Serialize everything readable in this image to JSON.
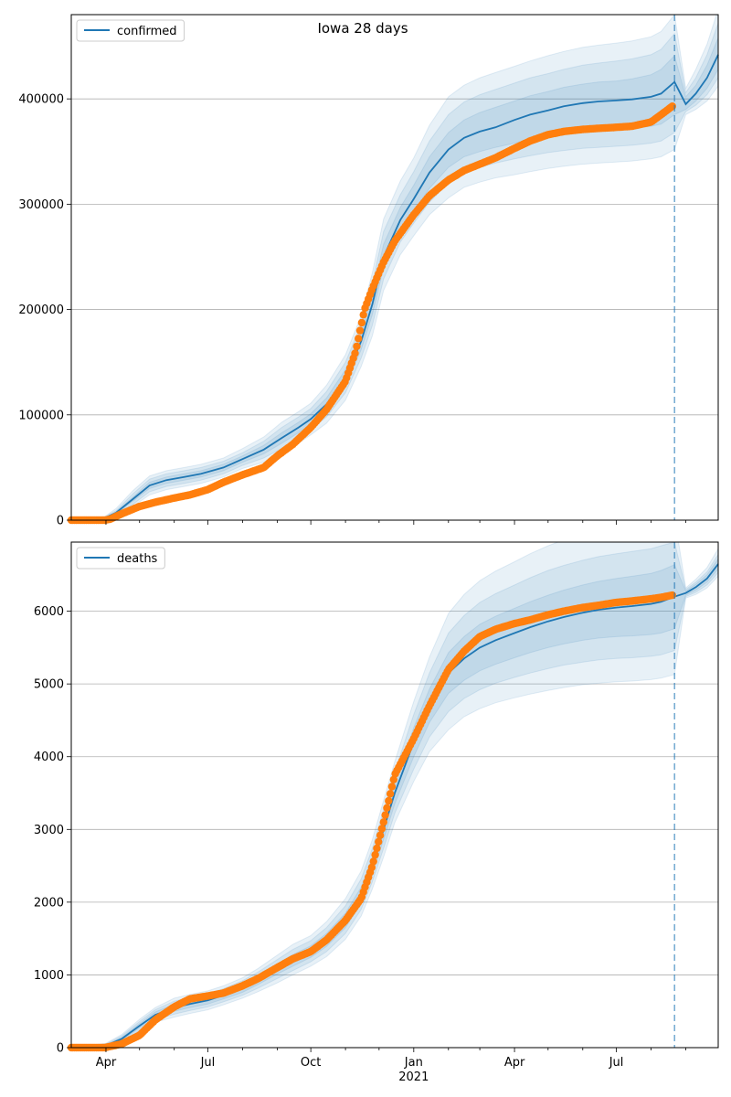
{
  "chart_data": [
    {
      "type": "line",
      "title": "Iowa 28 days",
      "legend": {
        "label": "confirmed",
        "placement": "top-left"
      },
      "ylim": [
        0,
        480000
      ],
      "yticks": [
        0,
        100000,
        200000,
        300000,
        400000
      ],
      "ytick_labels": [
        "0",
        "100000",
        "200000",
        "300000",
        "400000"
      ],
      "grid": "y",
      "x_range": [
        "2020-03-01",
        "2021-09-30"
      ],
      "forecast_start": "2021-08-22",
      "model": {
        "name": "confirmed",
        "color": "#1f77b4",
        "x": [
          "2020-03-01",
          "2020-03-31",
          "2020-04-10",
          "2020-04-25",
          "2020-05-10",
          "2020-05-25",
          "2020-06-10",
          "2020-06-25",
          "2020-07-15",
          "2020-08-01",
          "2020-08-20",
          "2020-09-05",
          "2020-09-20",
          "2020-10-01",
          "2020-10-15",
          "2020-11-01",
          "2020-11-15",
          "2020-11-25",
          "2020-12-05",
          "2020-12-20",
          "2021-01-01",
          "2021-01-15",
          "2021-02-01",
          "2021-02-15",
          "2021-03-01",
          "2021-03-15",
          "2021-04-01",
          "2021-04-15",
          "2021-05-01",
          "2021-05-15",
          "2021-06-01",
          "2021-06-15",
          "2021-07-01",
          "2021-07-15",
          "2021-08-01",
          "2021-08-10",
          "2021-08-22",
          "2021-09-01",
          "2021-09-10",
          "2021-09-20",
          "2021-09-30"
        ],
        "y": [
          0,
          2000,
          7000,
          20000,
          33000,
          38000,
          41000,
          44000,
          50000,
          58000,
          67000,
          78000,
          88000,
          96000,
          110000,
          135000,
          170000,
          205000,
          250000,
          285000,
          305000,
          330000,
          352000,
          363000,
          369000,
          373000,
          380000,
          385000,
          389000,
          393000,
          396000,
          397500,
          398500,
          399500,
          402000,
          405000,
          416000,
          395000,
          405000,
          420000,
          442000
        ],
        "band50": {
          "lower": [
            0,
            1500,
            6000,
            18000,
            30000,
            35000,
            38000,
            41000,
            47000,
            55000,
            63000,
            73000,
            83000,
            91000,
            104000,
            128000,
            162000,
            195000,
            240000,
            275000,
            293000,
            315000,
            335000,
            345000,
            350000,
            354000,
            358000,
            362000,
            365000,
            367000,
            369000,
            370000,
            371000,
            372000,
            374000,
            376000,
            385000,
            390000,
            398000,
            410000,
            428000
          ],
          "upper": [
            0,
            2500,
            8000,
            22000,
            36000,
            41000,
            44000,
            47000,
            53000,
            61000,
            71000,
            83000,
            93000,
            101000,
            116000,
            143000,
            178000,
            215000,
            262000,
            297000,
            318000,
            345000,
            368000,
            380000,
            387000,
            392000,
            398000,
            403000,
            407000,
            411000,
            414000,
            416000,
            417000,
            419000,
            423000,
            428000,
            441000,
            402000,
            413000,
            432000,
            458000
          ]
        },
        "band80": {
          "lower": [
            0,
            1000,
            5000,
            15000,
            27000,
            32000,
            35000,
            38000,
            44000,
            52000,
            59000,
            68000,
            78000,
            86000,
            98000,
            121000,
            154000,
            185000,
            229000,
            264000,
            282000,
            302000,
            320000,
            330000,
            335000,
            339000,
            343000,
            346000,
            349000,
            351000,
            353000,
            354000,
            355000,
            356000,
            358000,
            360000,
            368000,
            388000,
            394000,
            404000,
            420000
          ],
          "upper": [
            0,
            3000,
            9000,
            25000,
            39000,
            44000,
            47000,
            50000,
            56000,
            64000,
            75000,
            88000,
            98000,
            106000,
            122000,
            150000,
            186000,
            225000,
            274000,
            309000,
            331000,
            360000,
            385000,
            397000,
            404000,
            409000,
            415000,
            420000,
            424000,
            428000,
            432000,
            434000,
            436000,
            438000,
            442000,
            447000,
            462000,
            406000,
            420000,
            442000,
            472000
          ]
        },
        "band95": {
          "lower": [
            0,
            800,
            4000,
            13000,
            24000,
            29000,
            32000,
            35000,
            41000,
            49000,
            55000,
            63000,
            73000,
            81000,
            92000,
            114000,
            146000,
            175000,
            218000,
            252000,
            270000,
            290000,
            306000,
            316000,
            321000,
            325000,
            328000,
            331000,
            334000,
            336000,
            338000,
            339000,
            340000,
            341000,
            343000,
            345000,
            352000,
            385000,
            390000,
            398000,
            412000
          ],
          "upper": [
            0,
            3500,
            11000,
            28000,
            42000,
            47000,
            50000,
            53000,
            59000,
            68000,
            79000,
            93000,
            103000,
            111000,
            128000,
            157000,
            194000,
            235000,
            286000,
            322000,
            344000,
            375000,
            402000,
            413000,
            420000,
            425000,
            431000,
            436000,
            441000,
            445000,
            449000,
            451000,
            453000,
            455000,
            459000,
            464000,
            480000,
            410000,
            428000,
            452000,
            485000
          ]
        }
      },
      "observed": {
        "name": "observed",
        "color": "#ff7f0e",
        "x": [
          "2020-03-01",
          "2020-03-31",
          "2020-04-05",
          "2020-04-15",
          "2020-05-01",
          "2020-05-15",
          "2020-06-01",
          "2020-06-15",
          "2020-07-01",
          "2020-07-15",
          "2020-08-01",
          "2020-08-20",
          "2020-09-01",
          "2020-09-15",
          "2020-10-01",
          "2020-10-15",
          "2020-11-01",
          "2020-11-10",
          "2020-11-18",
          "2020-11-25",
          "2020-12-05",
          "2020-12-15",
          "2021-01-01",
          "2021-01-15",
          "2021-02-01",
          "2021-02-15",
          "2021-03-01",
          "2021-03-15",
          "2021-04-01",
          "2021-04-15",
          "2021-05-01",
          "2021-05-15",
          "2021-06-01",
          "2021-06-15",
          "2021-07-01",
          "2021-07-15",
          "2021-08-01",
          "2021-08-10",
          "2021-08-20"
        ],
        "y": [
          0,
          0,
          1000,
          6000,
          13000,
          17000,
          21000,
          24000,
          29000,
          36000,
          43000,
          50000,
          61000,
          72000,
          88000,
          105000,
          132000,
          160000,
          200000,
          220000,
          245000,
          265000,
          290000,
          308000,
          323000,
          332000,
          338000,
          344000,
          353000,
          360000,
          366000,
          369000,
          371000,
          372000,
          373000,
          374000,
          378000,
          385000,
          393000
        ]
      }
    },
    {
      "type": "line",
      "title": "",
      "legend": {
        "label": "deaths",
        "placement": "top-left"
      },
      "ylim": [
        0,
        6950
      ],
      "yticks": [
        0,
        1000,
        2000,
        3000,
        4000,
        5000,
        6000
      ],
      "ytick_labels": [
        "0",
        "1000",
        "2000",
        "3000",
        "4000",
        "5000",
        "6000"
      ],
      "grid": "y",
      "x_range": [
        "2020-03-01",
        "2021-09-30"
      ],
      "forecast_start": "2021-08-22",
      "xticks": [
        "2020-04-01",
        "2020-07-01",
        "2020-10-01",
        "2021-01-01",
        "2021-04-01",
        "2021-07-01"
      ],
      "xtick_labels": [
        "Apr",
        "Jul",
        "Oct",
        "Jan",
        "Apr",
        "Jul"
      ],
      "xtick_sublabels": [
        "",
        "",
        "",
        "2021",
        "",
        ""
      ],
      "model": {
        "name": "deaths",
        "color": "#1f77b4",
        "x": [
          "2020-03-01",
          "2020-04-01",
          "2020-04-15",
          "2020-05-01",
          "2020-05-15",
          "2020-06-01",
          "2020-06-15",
          "2020-07-01",
          "2020-07-15",
          "2020-08-01",
          "2020-08-15",
          "2020-09-01",
          "2020-09-15",
          "2020-10-01",
          "2020-10-15",
          "2020-11-01",
          "2020-11-15",
          "2020-11-25",
          "2020-12-05",
          "2020-12-15",
          "2021-01-01",
          "2021-01-15",
          "2021-02-01",
          "2021-02-15",
          "2021-03-01",
          "2021-03-15",
          "2021-04-01",
          "2021-04-15",
          "2021-05-01",
          "2021-05-15",
          "2021-06-01",
          "2021-06-15",
          "2021-07-01",
          "2021-07-15",
          "2021-08-01",
          "2021-08-10",
          "2021-08-22",
          "2021-09-01",
          "2021-09-10",
          "2021-09-20",
          "2021-09-30"
        ],
        "y": [
          0,
          30,
          120,
          300,
          450,
          550,
          600,
          650,
          720,
          820,
          930,
          1080,
          1200,
          1320,
          1480,
          1750,
          2100,
          2500,
          3000,
          3500,
          4200,
          4700,
          5150,
          5350,
          5500,
          5600,
          5700,
          5780,
          5860,
          5920,
          5980,
          6020,
          6050,
          6070,
          6100,
          6130,
          6200,
          6250,
          6330,
          6450,
          6650
        ],
        "band50": {
          "lower": [
            0,
            20,
            100,
            270,
            410,
            500,
            550,
            600,
            670,
            760,
            870,
            1010,
            1120,
            1240,
            1390,
            1650,
            1990,
            2380,
            2860,
            3350,
            4000,
            4470,
            4870,
            5050,
            5180,
            5270,
            5360,
            5430,
            5500,
            5550,
            5600,
            5630,
            5650,
            5660,
            5680,
            5700,
            5760,
            6220,
            6290,
            6400,
            6580
          ],
          "upper": [
            0,
            40,
            140,
            330,
            490,
            600,
            650,
            700,
            770,
            880,
            990,
            1150,
            1280,
            1400,
            1570,
            1850,
            2210,
            2620,
            3140,
            3650,
            4400,
            4930,
            5430,
            5650,
            5820,
            5930,
            6040,
            6130,
            6220,
            6290,
            6360,
            6410,
            6450,
            6480,
            6520,
            6560,
            6640,
            6280,
            6370,
            6500,
            6720
          ]
        },
        "band80": {
          "lower": [
            0,
            15,
            80,
            240,
            380,
            460,
            510,
            560,
            630,
            720,
            820,
            950,
            1060,
            1180,
            1320,
            1570,
            1900,
            2280,
            2740,
            3220,
            3830,
            4270,
            4620,
            4800,
            4920,
            5010,
            5090,
            5150,
            5210,
            5260,
            5300,
            5330,
            5350,
            5360,
            5380,
            5400,
            5460,
            6200,
            6260,
            6360,
            6530
          ],
          "upper": [
            0,
            50,
            160,
            360,
            520,
            640,
            690,
            740,
            810,
            920,
            1040,
            1210,
            1350,
            1470,
            1650,
            1950,
            2320,
            2740,
            3270,
            3790,
            4580,
            5150,
            5700,
            5940,
            6120,
            6240,
            6360,
            6460,
            6560,
            6630,
            6700,
            6750,
            6790,
            6820,
            6860,
            6900,
            6950,
            6300,
            6400,
            6540,
            6780
          ]
        },
        "band95": {
          "lower": [
            0,
            10,
            60,
            210,
            350,
            420,
            470,
            520,
            590,
            680,
            770,
            890,
            1000,
            1120,
            1250,
            1490,
            1810,
            2180,
            2620,
            3090,
            3660,
            4070,
            4370,
            4550,
            4660,
            4740,
            4810,
            4860,
            4910,
            4950,
            4990,
            5010,
            5030,
            5040,
            5060,
            5080,
            5130,
            6180,
            6230,
            6320,
            6480
          ],
          "upper": [
            0,
            60,
            180,
            390,
            550,
            680,
            730,
            780,
            850,
            960,
            1090,
            1270,
            1420,
            1540,
            1730,
            2050,
            2430,
            2860,
            3400,
            3930,
            4760,
            5370,
            5970,
            6230,
            6420,
            6550,
            6680,
            6790,
            6900,
            6980,
            7050,
            7100,
            7140,
            7170,
            7210,
            7250,
            7300,
            6320,
            6440,
            6600,
            6860
          ]
        }
      },
      "observed": {
        "name": "observed",
        "color": "#ff7f0e",
        "x": [
          "2020-03-01",
          "2020-03-31",
          "2020-04-15",
          "2020-05-01",
          "2020-05-15",
          "2020-06-01",
          "2020-06-15",
          "2020-07-01",
          "2020-07-15",
          "2020-08-01",
          "2020-08-15",
          "2020-09-01",
          "2020-09-15",
          "2020-10-01",
          "2020-10-15",
          "2020-11-01",
          "2020-11-15",
          "2020-11-25",
          "2020-12-05",
          "2020-12-15",
          "2021-01-01",
          "2021-01-15",
          "2021-02-01",
          "2021-02-15",
          "2021-03-01",
          "2021-03-15",
          "2021-04-01",
          "2021-04-15",
          "2021-05-01",
          "2021-05-15",
          "2021-06-01",
          "2021-06-15",
          "2021-07-01",
          "2021-07-15",
          "2021-08-01",
          "2021-08-10",
          "2021-08-20"
        ],
        "y": [
          0,
          0,
          50,
          170,
          380,
          560,
          670,
          710,
          750,
          850,
          950,
          1100,
          1220,
          1320,
          1480,
          1750,
          2050,
          2500,
          3100,
          3750,
          4250,
          4700,
          5200,
          5450,
          5650,
          5750,
          5830,
          5880,
          5950,
          6000,
          6050,
          6080,
          6120,
          6140,
          6170,
          6190,
          6220
        ]
      }
    }
  ]
}
